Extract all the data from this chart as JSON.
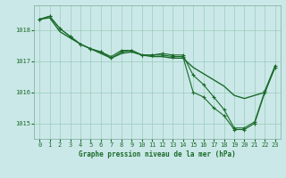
{
  "background_color": "#cbe8e8",
  "plot_bg_color": "#cbe8e8",
  "grid_color": "#99ccbb",
  "line_color": "#1a6b2a",
  "xlabel": "Graphe pression niveau de la mer (hPa)",
  "ylim": [
    1014.5,
    1018.8
  ],
  "xlim": [
    -0.5,
    23.5
  ],
  "yticks": [
    1015,
    1016,
    1017,
    1018
  ],
  "xticks": [
    0,
    1,
    2,
    3,
    4,
    5,
    6,
    7,
    8,
    9,
    10,
    11,
    12,
    13,
    14,
    15,
    16,
    17,
    18,
    19,
    20,
    21,
    22,
    23
  ],
  "series_smooth": [
    1018.35,
    1018.4,
    1017.95,
    1017.75,
    1017.55,
    1017.4,
    1017.25,
    1017.1,
    1017.25,
    1017.3,
    1017.2,
    1017.15,
    1017.15,
    1017.1,
    1017.1,
    1016.8,
    1016.6,
    1016.4,
    1016.2,
    1015.9,
    1015.8,
    1015.9,
    1016.0,
    1016.85
  ],
  "series_marker1": [
    1018.35,
    1018.45,
    1018.05,
    1017.8,
    1017.55,
    1017.4,
    1017.3,
    1017.15,
    1017.35,
    1017.35,
    1017.2,
    1017.2,
    1017.25,
    1017.2,
    1017.2,
    1016.55,
    1016.25,
    1015.85,
    1015.45,
    1014.85,
    1014.85,
    1015.05,
    1016.05,
    1016.85
  ],
  "series_marker2": [
    1018.35,
    1018.45,
    1018.05,
    1017.8,
    1017.55,
    1017.4,
    1017.3,
    1017.1,
    1017.3,
    1017.35,
    1017.2,
    1017.2,
    1017.2,
    1017.15,
    1017.15,
    1016.0,
    1015.85,
    1015.5,
    1015.25,
    1014.8,
    1014.8,
    1015.0,
    1016.0,
    1016.8
  ]
}
